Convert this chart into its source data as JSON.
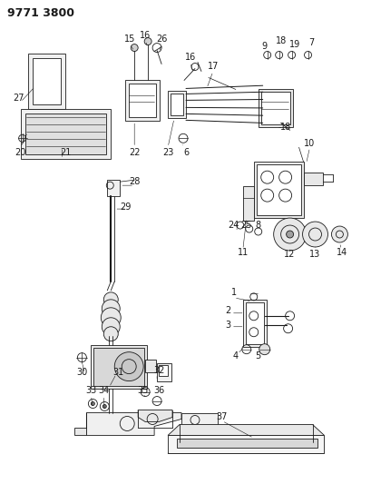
{
  "title": "9771 3800",
  "bg_color": "#ffffff",
  "line_color": "#1a1a1a",
  "title_fontsize": 9,
  "label_fontsize": 7,
  "fig_width": 4.1,
  "fig_height": 5.33,
  "dpi": 100
}
